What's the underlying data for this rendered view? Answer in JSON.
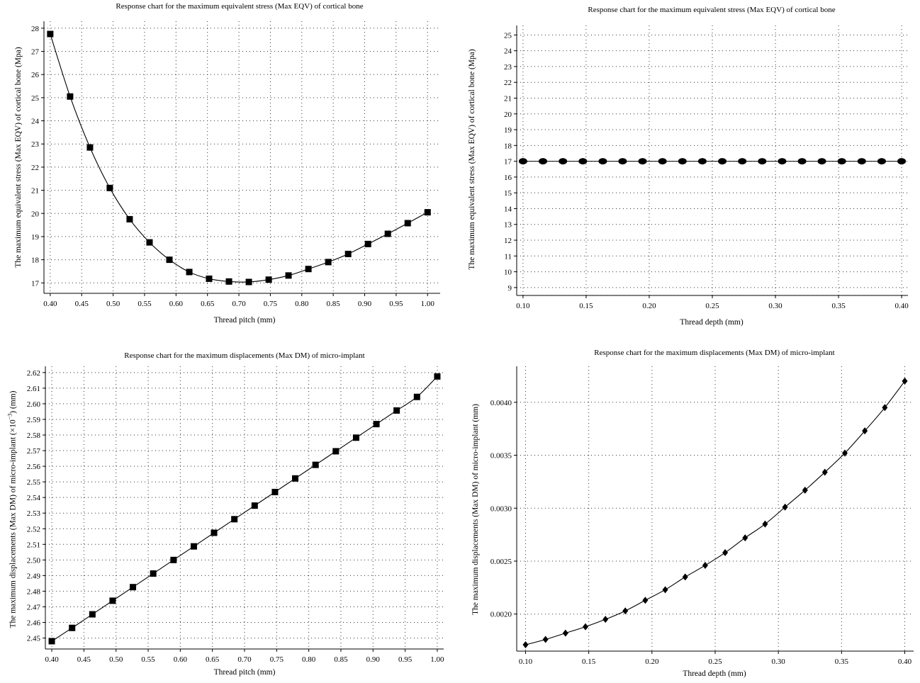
{
  "chart_data": [
    {
      "id": "c1",
      "type": "line",
      "title": "Response chart for the maximum equivalent stress (Max EQV) of cortical bone",
      "xlabel": "Thread pitch (mm)",
      "ylabel": "The maximum equivalent stress (Max EQV) of cortical bone (Mpa)",
      "xlim": [
        0.39,
        1.02
      ],
      "ylim": [
        16.55,
        28.3
      ],
      "xticks": [
        "0.40",
        "0.45",
        "0.50",
        "0.55",
        "0.60",
        "0.65",
        "0.70",
        "0.75",
        "0.80",
        "0.85",
        "0.90",
        "0.95",
        "1.00"
      ],
      "yticks": [
        "17",
        "18",
        "19",
        "20",
        "21",
        "22",
        "23",
        "24",
        "25",
        "26",
        "27",
        "28"
      ],
      "grid": true,
      "marker": "square",
      "x": [
        0.4,
        0.4316,
        0.4632,
        0.4947,
        0.5263,
        0.5579,
        0.5895,
        0.6211,
        0.6526,
        0.6842,
        0.7158,
        0.7474,
        0.7789,
        0.8105,
        0.8421,
        0.8737,
        0.9053,
        0.9368,
        0.9684,
        1.0
      ],
      "y": [
        27.75,
        25.05,
        22.85,
        21.1,
        19.75,
        18.75,
        18.0,
        17.47,
        17.18,
        17.06,
        17.04,
        17.14,
        17.32,
        17.6,
        17.9,
        18.25,
        18.68,
        19.12,
        19.58,
        20.05
      ]
    },
    {
      "id": "c2",
      "type": "line",
      "title": "Response chart for the maximum equivalent stress (Max EQV) of cortical bone",
      "xlabel": "Thread depth (mm)",
      "ylabel": "The maximum equivalent stress (Max EQV) of cortical bone (Mpa)",
      "xlim": [
        0.095,
        0.405
      ],
      "ylim": [
        8.5,
        25.6
      ],
      "xticks": [
        "0.10",
        "0.15",
        "0.20",
        "0.25",
        "0.30",
        "0.35",
        "0.40"
      ],
      "yticks": [
        "9",
        "10",
        "11",
        "12",
        "13",
        "14",
        "15",
        "16",
        "17",
        "18",
        "19",
        "20",
        "21",
        "22",
        "23",
        "24",
        "25"
      ],
      "grid": true,
      "marker": "oval",
      "x": [
        0.1,
        0.1158,
        0.1316,
        0.1474,
        0.1632,
        0.1789,
        0.1947,
        0.2105,
        0.2263,
        0.2421,
        0.2579,
        0.2737,
        0.2895,
        0.3053,
        0.3211,
        0.3368,
        0.3526,
        0.3684,
        0.3842,
        0.4
      ],
      "y": [
        17.0,
        17.0,
        17.0,
        17.0,
        17.0,
        17.0,
        17.0,
        17.0,
        17.0,
        17.0,
        17.0,
        17.0,
        17.0,
        17.0,
        17.0,
        17.0,
        17.0,
        17.0,
        17.0,
        17.0
      ]
    },
    {
      "id": "c3",
      "type": "line",
      "title": "Response chart for the maximum displacements (Max DM) of micro-implant",
      "xlabel": "Thread pitch (mm)",
      "ylabel": "The maximum displacements (Max DM) of micro-implant (×10",
      "ylabel_sup": "−3",
      "ylabel_end": ") (mm)",
      "xlim": [
        0.39,
        1.01
      ],
      "ylim": [
        2.443,
        2.624
      ],
      "xticks": [
        "0.40",
        "0.45",
        "0.50",
        "0.55",
        "0.60",
        "0.65",
        "0.70",
        "0.75",
        "0.80",
        "0.85",
        "0.90",
        "0.95",
        "1.00"
      ],
      "yticks": [
        "2.45",
        "2.46",
        "2.47",
        "2.48",
        "2.49",
        "2.50",
        "2.51",
        "2.52",
        "2.53",
        "2.54",
        "2.55",
        "2.56",
        "2.57",
        "2.58",
        "2.59",
        "2.60",
        "2.61",
        "2.62"
      ],
      "grid": true,
      "marker": "square",
      "x": [
        0.4,
        0.4316,
        0.4632,
        0.4947,
        0.5263,
        0.5579,
        0.5895,
        0.6211,
        0.6526,
        0.6842,
        0.7158,
        0.7474,
        0.7789,
        0.8105,
        0.8421,
        0.8737,
        0.9053,
        0.9368,
        0.9684,
        1.0
      ],
      "y": [
        2.448,
        2.4565,
        2.4652,
        2.4739,
        2.4826,
        2.4913,
        2.5,
        2.5087,
        2.5174,
        2.5261,
        2.5348,
        2.5435,
        2.5522,
        2.5609,
        2.5696,
        2.5783,
        2.587,
        2.5957,
        2.6044,
        2.6175
      ]
    },
    {
      "id": "c4",
      "type": "line",
      "title": "Response chart for the maximum displacements (Max DM) of micro-implant",
      "xlabel": "Thread depth (mm)",
      "ylabel": "The maximum displacements (Max DM) of micro-implant (mm)",
      "xlim": [
        0.093,
        0.407
      ],
      "ylim": [
        0.00165,
        0.00434
      ],
      "xticks": [
        "0.10",
        "0.15",
        "0.20",
        "0.25",
        "0.30",
        "0.35",
        "0.40"
      ],
      "yticks": [
        "0.0020",
        "0.0025",
        "0.0030",
        "0.0035",
        "0.0040"
      ],
      "grid": true,
      "marker": "diamond",
      "x": [
        0.1,
        0.1158,
        0.1316,
        0.1474,
        0.1632,
        0.1789,
        0.1947,
        0.2105,
        0.2263,
        0.2421,
        0.2579,
        0.2737,
        0.2895,
        0.3053,
        0.3211,
        0.3368,
        0.3526,
        0.3684,
        0.3842,
        0.4
      ],
      "y": [
        0.00171,
        0.00176,
        0.00182,
        0.00188,
        0.00195,
        0.00203,
        0.00213,
        0.00223,
        0.00235,
        0.00246,
        0.00258,
        0.00272,
        0.00285,
        0.00301,
        0.00317,
        0.00334,
        0.00352,
        0.00373,
        0.00395,
        0.0042
      ]
    }
  ]
}
